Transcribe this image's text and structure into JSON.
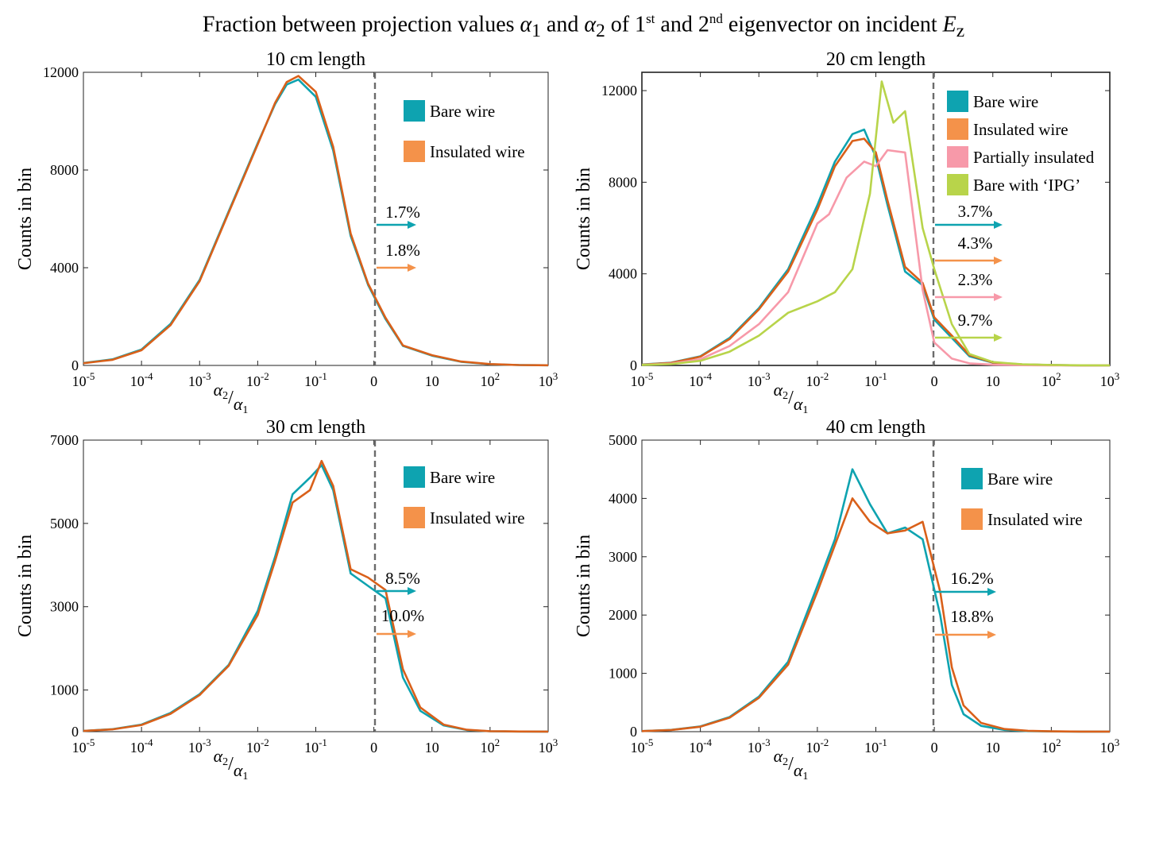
{
  "figure": {
    "title_prefix": "Fraction between projection values ",
    "title_alpha1": "α",
    "title_sub1": "1",
    "title_and": " and ",
    "title_alpha2": "α",
    "title_sub2": "2",
    "title_mid": " of 1",
    "title_sup1": "st",
    "title_and2": " and 2",
    "title_sup2": "nd",
    "title_suffix": " eigenvector on incident ",
    "title_E": "E",
    "title_subz": "z"
  },
  "colors": {
    "bare": "#0EA3B0",
    "insulated": "#D9601A",
    "insulated_legend": "#F4924A",
    "partial": "#F799A9",
    "ipg": "#B8D44A",
    "dashed": "#6b6b6b"
  },
  "chart_data": [
    {
      "type": "line",
      "title": "10 cm length",
      "xlabel": "α2/α1",
      "ylabel": "Counts in bin",
      "x_tick_labels": [
        "10-5",
        "10-4",
        "10-3",
        "10-2",
        "10-1",
        "0",
        "10",
        "102",
        "103"
      ],
      "y_ticks": [
        0,
        4000,
        8000,
        12000
      ],
      "ylim": [
        0,
        12000
      ],
      "legend": [
        "Bare wire",
        "Insulated wire"
      ],
      "annotations": [
        "1.7%",
        "1.8%"
      ],
      "series": [
        {
          "name": "Bare wire",
          "x": [
            0,
            0.5,
            1,
            1.5,
            2,
            2.5,
            3,
            3.3,
            3.5,
            3.7,
            4,
            4.3,
            4.6,
            4.9,
            5.2,
            5.5,
            6,
            6.5,
            7,
            7.5,
            8
          ],
          "values": [
            100,
            250,
            650,
            1700,
            3500,
            6300,
            9100,
            10700,
            11500,
            11700,
            11000,
            8800,
            5300,
            3300,
            1900,
            800,
            400,
            150,
            50,
            15,
            5
          ]
        },
        {
          "name": "Insulated wire",
          "x": [
            0,
            0.5,
            1,
            1.5,
            2,
            2.5,
            3,
            3.3,
            3.5,
            3.7,
            4,
            4.3,
            4.6,
            4.9,
            5.2,
            5.5,
            6,
            6.5,
            7,
            7.5,
            8
          ],
          "values": [
            90,
            230,
            620,
            1650,
            3450,
            6250,
            9050,
            10750,
            11600,
            11850,
            11200,
            8950,
            5400,
            3350,
            1950,
            820,
            420,
            160,
            55,
            15,
            5
          ]
        }
      ]
    },
    {
      "type": "line",
      "title": "20 cm length",
      "xlabel": "α2/α1",
      "ylabel": "Counts in bin",
      "x_tick_labels": [
        "10-5",
        "10-4",
        "10-3",
        "10-2",
        "10-1",
        "0",
        "10",
        "102",
        "103"
      ],
      "y_ticks": [
        0,
        4000,
        8000,
        12000
      ],
      "ylim": [
        0,
        12800
      ],
      "legend": [
        "Bare wire",
        "Insulated wire",
        "Partially insulated",
        "Bare with ‘IPG’"
      ],
      "annotations": [
        "3.7%",
        "4.3%",
        "2.3%",
        "9.7%"
      ],
      "series": [
        {
          "name": "Bare wire",
          "x": [
            0,
            0.5,
            1,
            1.5,
            2,
            2.5,
            3,
            3.3,
            3.6,
            3.8,
            4,
            4.2,
            4.5,
            4.8,
            5,
            5.3,
            5.6,
            6,
            6.5,
            7,
            7.5,
            8
          ],
          "values": [
            40,
            120,
            400,
            1200,
            2500,
            4200,
            7000,
            8900,
            10100,
            10300,
            9100,
            7000,
            4100,
            3500,
            2000,
            1200,
            400,
            120,
            40,
            15,
            5,
            2
          ]
        },
        {
          "name": "Insulated wire",
          "x": [
            0,
            0.5,
            1,
            1.5,
            2,
            2.5,
            3,
            3.3,
            3.6,
            3.8,
            4,
            4.2,
            4.5,
            4.8,
            5,
            5.3,
            5.6,
            6,
            6.5,
            7,
            7.5,
            8
          ],
          "values": [
            35,
            110,
            380,
            1150,
            2450,
            4100,
            6800,
            8700,
            9800,
            9900,
            9300,
            7200,
            4300,
            3600,
            2100,
            1300,
            450,
            130,
            45,
            15,
            5,
            2
          ]
        },
        {
          "name": "Partially insulated",
          "x": [
            0,
            0.5,
            1,
            1.5,
            2,
            2.5,
            3,
            3.2,
            3.5,
            3.8,
            4,
            4.2,
            4.5,
            4.8,
            5,
            5.3,
            5.6,
            6,
            6.5,
            7,
            7.5,
            8
          ],
          "values": [
            25,
            80,
            270,
            850,
            1800,
            3200,
            6200,
            6600,
            8200,
            8900,
            8700,
            9400,
            9300,
            3300,
            1000,
            300,
            90,
            30,
            10,
            4,
            2,
            1
          ]
        },
        {
          "name": "Bare with ‘IPG’",
          "x": [
            0,
            0.5,
            1,
            1.5,
            2,
            2.5,
            3,
            3.3,
            3.6,
            3.9,
            4.1,
            4.3,
            4.5,
            4.8,
            5,
            5.3,
            5.6,
            6,
            6.5,
            7,
            7.5,
            8
          ],
          "values": [
            20,
            60,
            200,
            600,
            1300,
            2300,
            2800,
            3200,
            4200,
            7500,
            12400,
            10600,
            11100,
            6000,
            4200,
            1800,
            500,
            150,
            50,
            20,
            8,
            3
          ]
        }
      ]
    },
    {
      "type": "line",
      "title": "30 cm length",
      "xlabel": "α2/α1",
      "ylabel": "Counts in bin",
      "x_tick_labels": [
        "10-5",
        "10-4",
        "10-3",
        "10-2",
        "10-1",
        "0",
        "10",
        "102",
        "103"
      ],
      "y_ticks": [
        0,
        1000,
        3000,
        5000,
        7000
      ],
      "ylim": [
        0,
        7000
      ],
      "legend": [
        "Bare wire",
        "Insulated wire"
      ],
      "annotations": [
        "8.5%",
        "10.0%"
      ],
      "series": [
        {
          "name": "Bare wire",
          "x": [
            0,
            0.5,
            1,
            1.5,
            2,
            2.5,
            3,
            3.3,
            3.6,
            3.9,
            4.1,
            4.3,
            4.6,
            4.9,
            5.2,
            5.5,
            5.8,
            6.2,
            6.6,
            7,
            7.5,
            8
          ],
          "values": [
            20,
            60,
            170,
            450,
            900,
            1600,
            2900,
            4200,
            5700,
            6100,
            6400,
            5800,
            3800,
            3500,
            3200,
            1300,
            500,
            150,
            40,
            10,
            3,
            1
          ]
        },
        {
          "name": "Insulated wire",
          "x": [
            0,
            0.5,
            1,
            1.5,
            2,
            2.5,
            3,
            3.3,
            3.6,
            3.9,
            4.1,
            4.3,
            4.6,
            4.9,
            5.2,
            5.5,
            5.8,
            6.2,
            6.6,
            7,
            7.5,
            8
          ],
          "values": [
            18,
            55,
            160,
            430,
            880,
            1580,
            2800,
            4100,
            5500,
            5800,
            6500,
            5900,
            3900,
            3700,
            3400,
            1500,
            580,
            170,
            45,
            12,
            3,
            1
          ]
        }
      ]
    },
    {
      "type": "line",
      "title": "40 cm length",
      "xlabel": "α2/α1",
      "ylabel": "Counts in bin",
      "x_tick_labels": [
        "10-5",
        "10-4",
        "10-3",
        "10-2",
        "10-1",
        "0",
        "10",
        "102",
        "103"
      ],
      "y_ticks": [
        0,
        1000,
        2000,
        3000,
        4000,
        5000
      ],
      "ylim": [
        0,
        5000
      ],
      "legend": [
        "Bare wire",
        "Insulated wire"
      ],
      "annotations": [
        "16.2%",
        "18.8%"
      ],
      "series": [
        {
          "name": "Bare wire",
          "x": [
            0,
            0.5,
            1,
            1.5,
            2,
            2.5,
            3,
            3.3,
            3.6,
            3.9,
            4.2,
            4.5,
            4.8,
            5.1,
            5.3,
            5.5,
            5.8,
            6.2,
            6.6,
            7,
            7.5,
            8
          ],
          "values": [
            10,
            30,
            90,
            250,
            600,
            1200,
            2500,
            3300,
            4500,
            3900,
            3400,
            3500,
            3300,
            2000,
            800,
            300,
            100,
            30,
            10,
            4,
            2,
            1
          ]
        },
        {
          "name": "Insulated wire",
          "x": [
            0,
            0.5,
            1,
            1.5,
            2,
            2.5,
            3,
            3.3,
            3.6,
            3.9,
            4.2,
            4.5,
            4.8,
            5.1,
            5.3,
            5.5,
            5.8,
            6.2,
            6.6,
            7,
            7.5,
            8
          ],
          "values": [
            9,
            28,
            85,
            240,
            580,
            1150,
            2400,
            3200,
            4000,
            3600,
            3400,
            3450,
            3600,
            2400,
            1100,
            450,
            150,
            45,
            15,
            5,
            2,
            1
          ]
        }
      ]
    }
  ]
}
